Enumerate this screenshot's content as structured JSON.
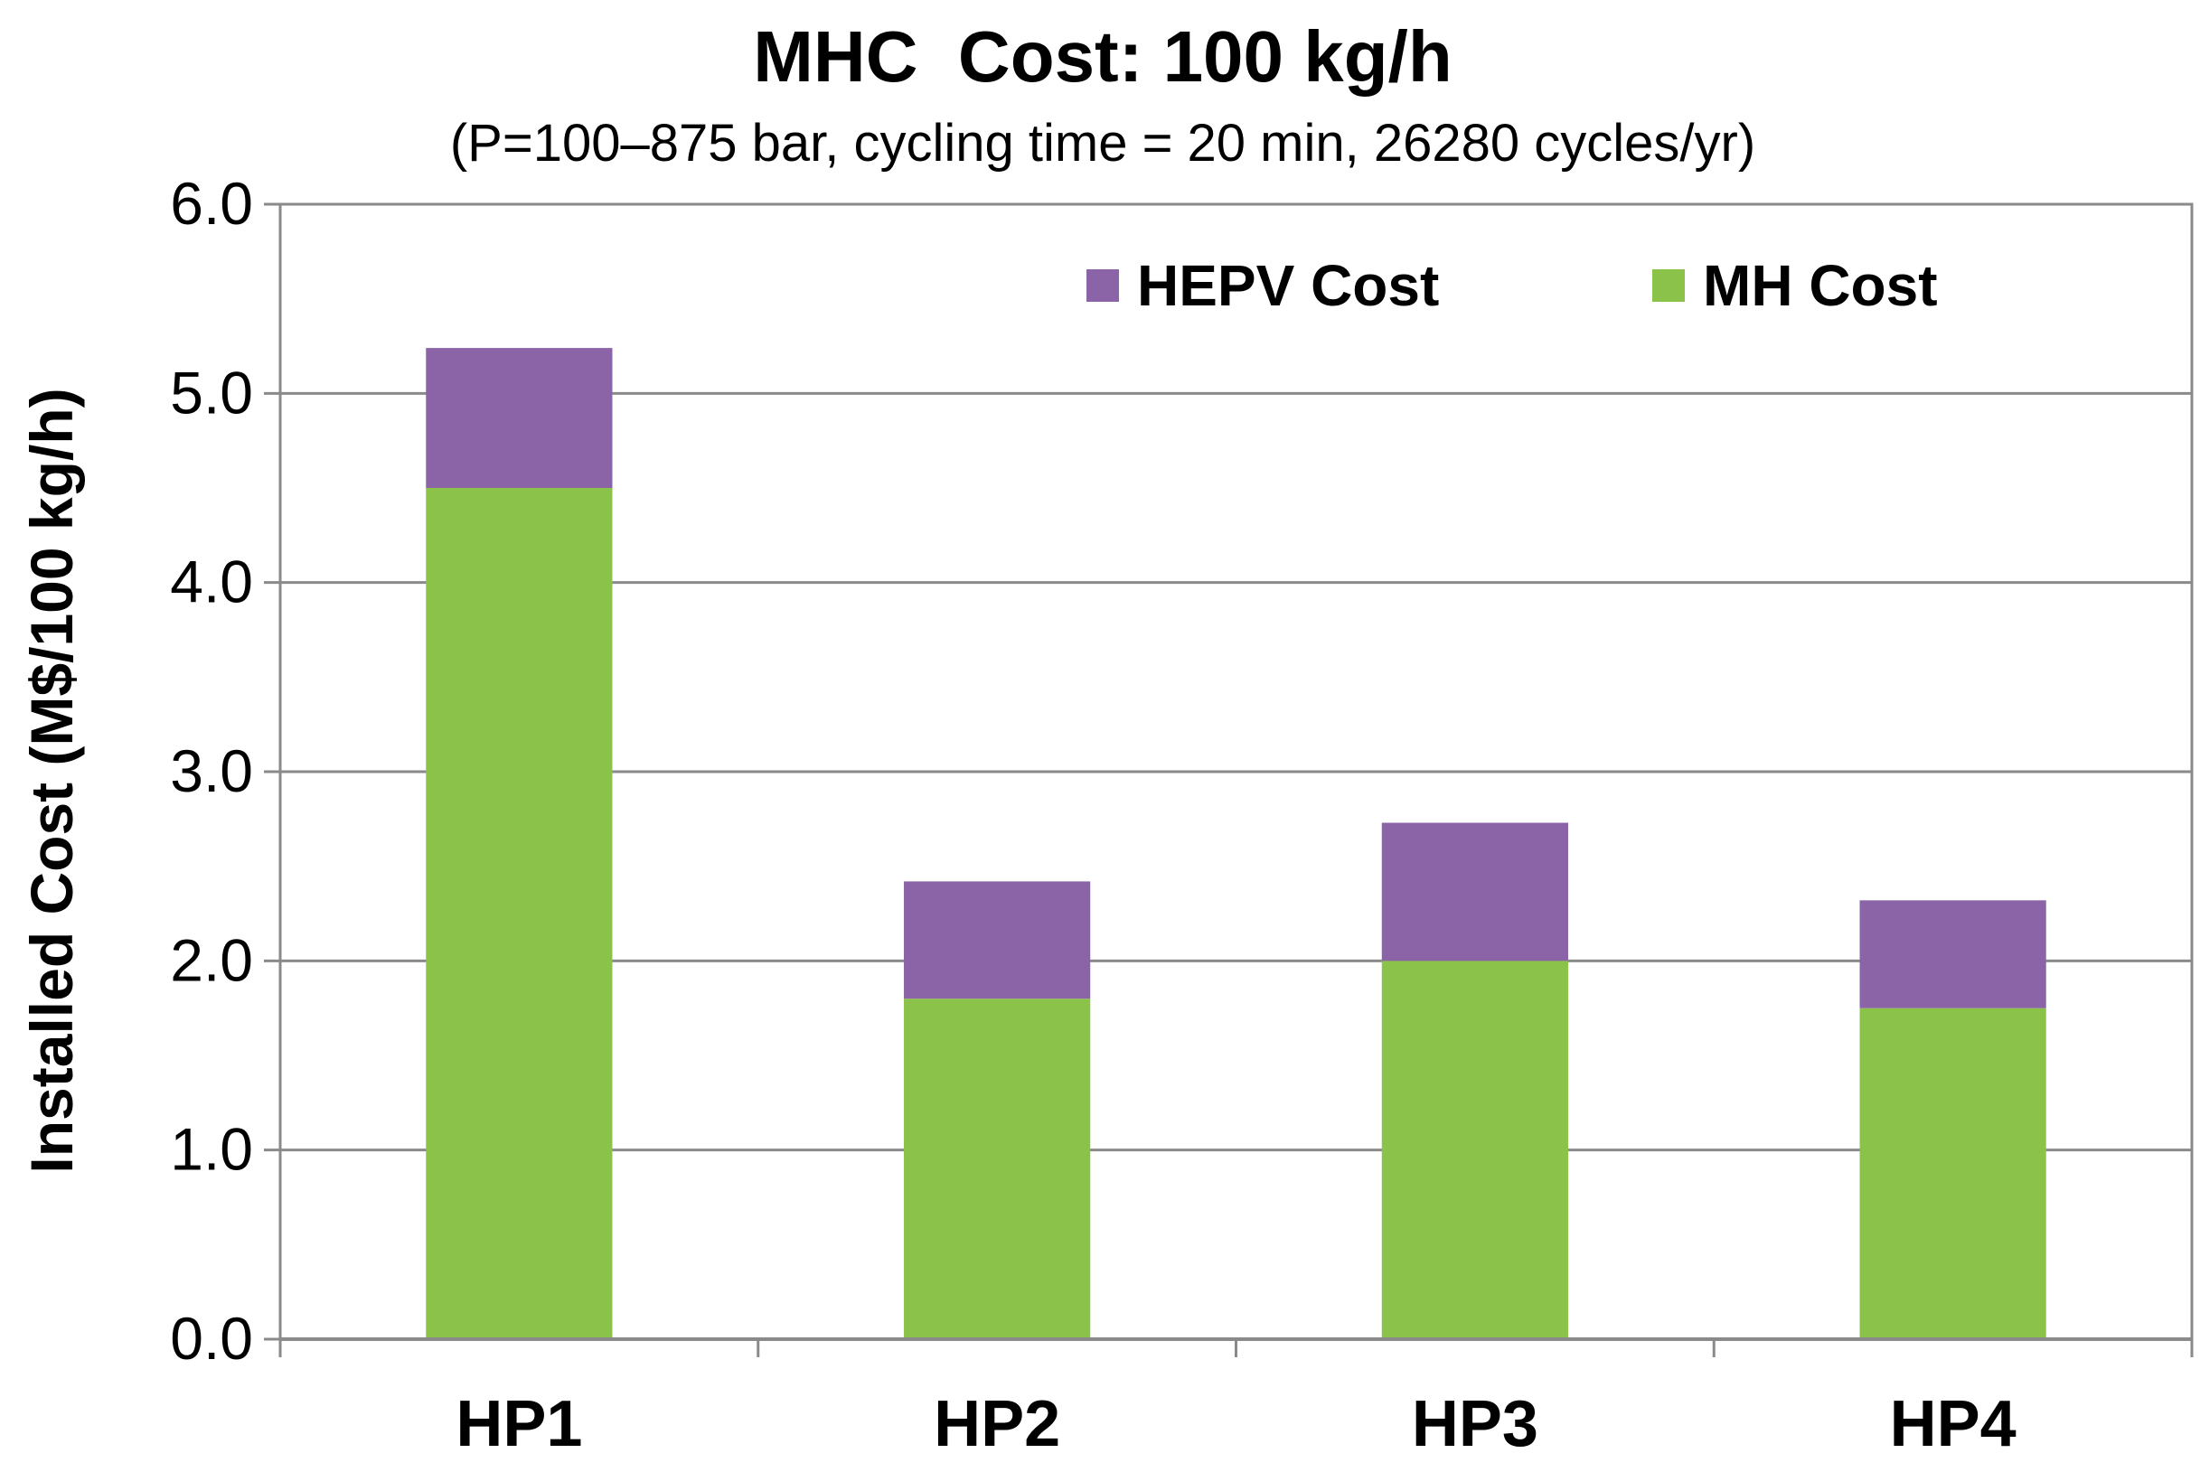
{
  "chart_data": {
    "type": "bar",
    "stacked": true,
    "title": "MHC  Cost: 100 kg/h",
    "subtitle": "(P=100–875 bar, cycling time = 20 min, 26280 cycles/yr)",
    "xlabel": "",
    "ylabel": "Installed Cost (M$/100 kg/h)",
    "ylim": [
      0,
      6
    ],
    "yticks": [
      0,
      1,
      2,
      3,
      4,
      5,
      6
    ],
    "ytick_labels": [
      "0.0",
      "1.0",
      "2.0",
      "3.0",
      "4.0",
      "5.0",
      "6.0"
    ],
    "grid": true,
    "legend_position": "top-right",
    "categories": [
      "HP1",
      "HP2",
      "HP3",
      "HP4"
    ],
    "series": [
      {
        "name": "MH Cost",
        "color": "#8bc34a",
        "values": [
          4.5,
          1.8,
          2.0,
          1.75
        ]
      },
      {
        "name": "HEPV Cost",
        "color": "#8b64a8",
        "values": [
          0.74,
          0.62,
          0.73,
          0.57
        ]
      }
    ],
    "legend_order": [
      "HEPV Cost",
      "MH Cost"
    ]
  }
}
